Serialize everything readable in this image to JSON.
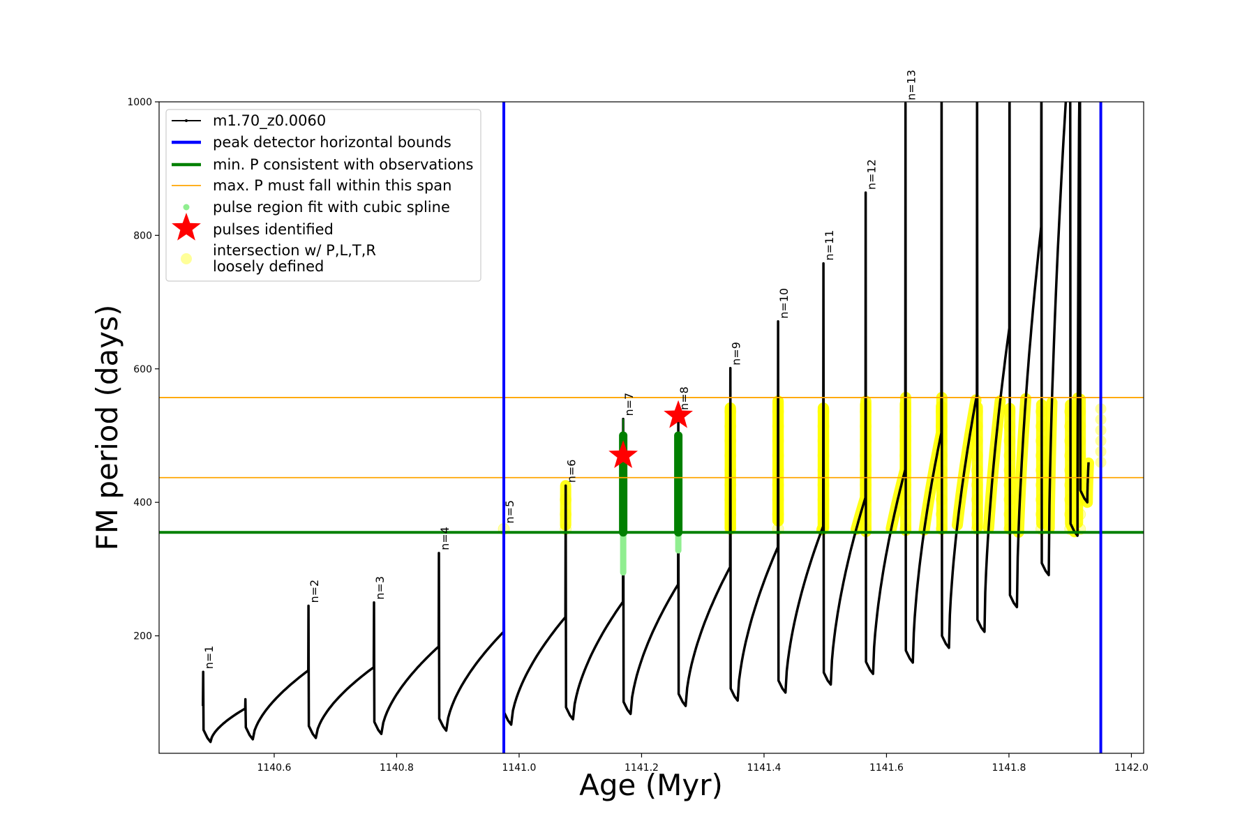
{
  "chart_data": {
    "type": "line",
    "xlabel": "Age (Myr)",
    "ylabel": "FM period (days)",
    "xlim": [
      1140.412,
      1142.02
    ],
    "ylim": [
      24,
      1000
    ],
    "xticks": [
      1140.6,
      1140.8,
      1141.0,
      1141.2,
      1141.4,
      1141.6,
      1141.8,
      1142.0
    ],
    "xtick_labels": [
      "1140.6",
      "1140.8",
      "1141.0",
      "1141.2",
      "1141.4",
      "1141.6",
      "1141.8",
      "1142.0"
    ],
    "yticks": [
      200,
      400,
      600,
      800,
      1000
    ],
    "ytick_labels": [
      "200",
      "400",
      "600",
      "800",
      "1000"
    ],
    "grid": false,
    "legend_position": "top-left",
    "legend": [
      {
        "label": "m1.70_z0.0060",
        "kind": "line-marker",
        "color": "#000000"
      },
      {
        "label": "peak detector horizontal bounds",
        "kind": "thick-line",
        "color": "#0000ff"
      },
      {
        "label": "min. P consistent with observations",
        "kind": "thick-line",
        "color": "#008000"
      },
      {
        "label": "max. P must fall within this span",
        "kind": "thin-line",
        "color": "#ffa500"
      },
      {
        "label": "pulse region fit with cubic spline",
        "kind": "dot",
        "color": "#90ee90"
      },
      {
        "label": "pulses identified",
        "kind": "star",
        "color": "#ff0000"
      },
      {
        "label": "intersection w/ P,L,T,R",
        "label2": "loosely defined",
        "kind": "circle",
        "color": "#ffff99"
      }
    ],
    "vertical_bounds": [
      1140.975,
      1141.95
    ],
    "min_period": 355,
    "max_period_span": [
      437,
      557
    ],
    "series_name": "m1.70_z0.0060",
    "start": {
      "age": 1140.484,
      "period": 95
    },
    "end_age": 1141.93,
    "pulses": [
      {
        "label": "n=1",
        "age": 1140.484,
        "pre": 95,
        "peak": 146,
        "min": 41
      },
      {
        "label": "",
        "age": 1140.553,
        "pre": 91,
        "peak": 105,
        "min": 45
      },
      {
        "label": "n=2",
        "age": 1140.656,
        "pre": 148,
        "peak": 245,
        "min": 47
      },
      {
        "label": "n=3",
        "age": 1140.763,
        "pre": 153,
        "peak": 250,
        "min": 53
      },
      {
        "label": "n=4",
        "age": 1140.869,
        "pre": 184,
        "peak": 324,
        "min": 58
      },
      {
        "label": "n=5",
        "age": 1140.975,
        "pre": 206,
        "peak": 364,
        "min": 67
      },
      {
        "label": "n=6",
        "age": 1141.076,
        "pre": 228,
        "peak": 425,
        "min": 75
      },
      {
        "label": "n=7",
        "age": 1141.17,
        "pre": 251,
        "peak": 525,
        "min": 83
      },
      {
        "label": "n=8",
        "age": 1141.26,
        "pre": 277,
        "peak": 534,
        "min": 95
      },
      {
        "label": "n=9",
        "age": 1141.345,
        "pre": 303,
        "peak": 601,
        "min": 103
      },
      {
        "label": "n=10",
        "age": 1141.423,
        "pre": 333,
        "peak": 671,
        "min": 115
      },
      {
        "label": "n=11",
        "age": 1141.497,
        "pre": 364,
        "peak": 758,
        "min": 127
      },
      {
        "label": "n=12",
        "age": 1141.566,
        "pre": 407,
        "peak": 864,
        "min": 143
      },
      {
        "label": "n=13",
        "age": 1141.631,
        "pre": 449,
        "peak": 998,
        "min": 160
      },
      {
        "label": "",
        "age": 1141.69,
        "pre": 504,
        "peak": 1100,
        "min": 182
      },
      {
        "label": "",
        "age": 1141.748,
        "pre": 561,
        "peak": 1100,
        "min": 206
      },
      {
        "label": "",
        "age": 1141.801,
        "pre": 661,
        "peak": 1100,
        "min": 243
      },
      {
        "label": "",
        "age": 1141.853,
        "pre": 813,
        "peak": 1100,
        "min": 291
      },
      {
        "label": "",
        "age": 1141.9,
        "pre": 1100,
        "peak": 1100,
        "min": 350
      },
      {
        "label": "",
        "age": 1141.916,
        "pre": 1100,
        "peak": 1100,
        "min": 400
      }
    ],
    "pulses_identified": [
      {
        "label": "n=7",
        "age": 1141.17,
        "period": 470
      },
      {
        "label": "n=8",
        "age": 1141.26,
        "period": 530
      }
    ],
    "spline_regions": [
      {
        "age": 1141.17,
        "from": 295,
        "to": 500
      },
      {
        "age": 1141.26,
        "from": 328,
        "to": 530
      }
    ],
    "colors": {
      "curve": "#000000",
      "bounds": "#0000ff",
      "minP": "#008000",
      "maxP": "#ffa500",
      "spline": "#90ee90",
      "spline_dark": "#008000",
      "star": "#ff0000",
      "intersection": "#ffff00"
    }
  }
}
